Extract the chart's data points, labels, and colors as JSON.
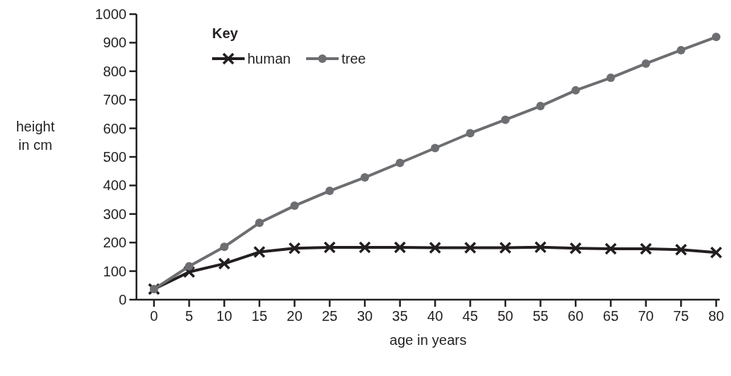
{
  "chart_data": {
    "type": "line",
    "xlabel": "age in years",
    "ylabel": "height in cm",
    "legend_title": "Key",
    "x": [
      0,
      5,
      10,
      15,
      20,
      25,
      30,
      35,
      40,
      45,
      50,
      55,
      60,
      65,
      70,
      75,
      80
    ],
    "series": [
      {
        "name": "human",
        "color": "#231f20",
        "marker": "cross",
        "values": [
          37,
          97,
          126,
          167,
          180,
          183,
          183,
          183,
          182,
          182,
          182,
          184,
          180,
          178,
          178,
          175,
          165
        ]
      },
      {
        "name": "tree",
        "color": "#6d6e71",
        "marker": "circle",
        "values": [
          37,
          117,
          185,
          269,
          329,
          381,
          428,
          479,
          531,
          583,
          630,
          678,
          733,
          777,
          827,
          874,
          920
        ]
      }
    ],
    "xlim": [
      -2.5,
      80.5
    ],
    "xticks": [
      0,
      5,
      10,
      15,
      20,
      25,
      30,
      35,
      40,
      45,
      50,
      55,
      60,
      65,
      70,
      75,
      80
    ],
    "ylim": [
      0,
      1000
    ],
    "yticks": [
      0,
      100,
      200,
      300,
      400,
      500,
      600,
      700,
      800,
      900,
      1000
    ],
    "grid": false,
    "legend": "top left"
  }
}
